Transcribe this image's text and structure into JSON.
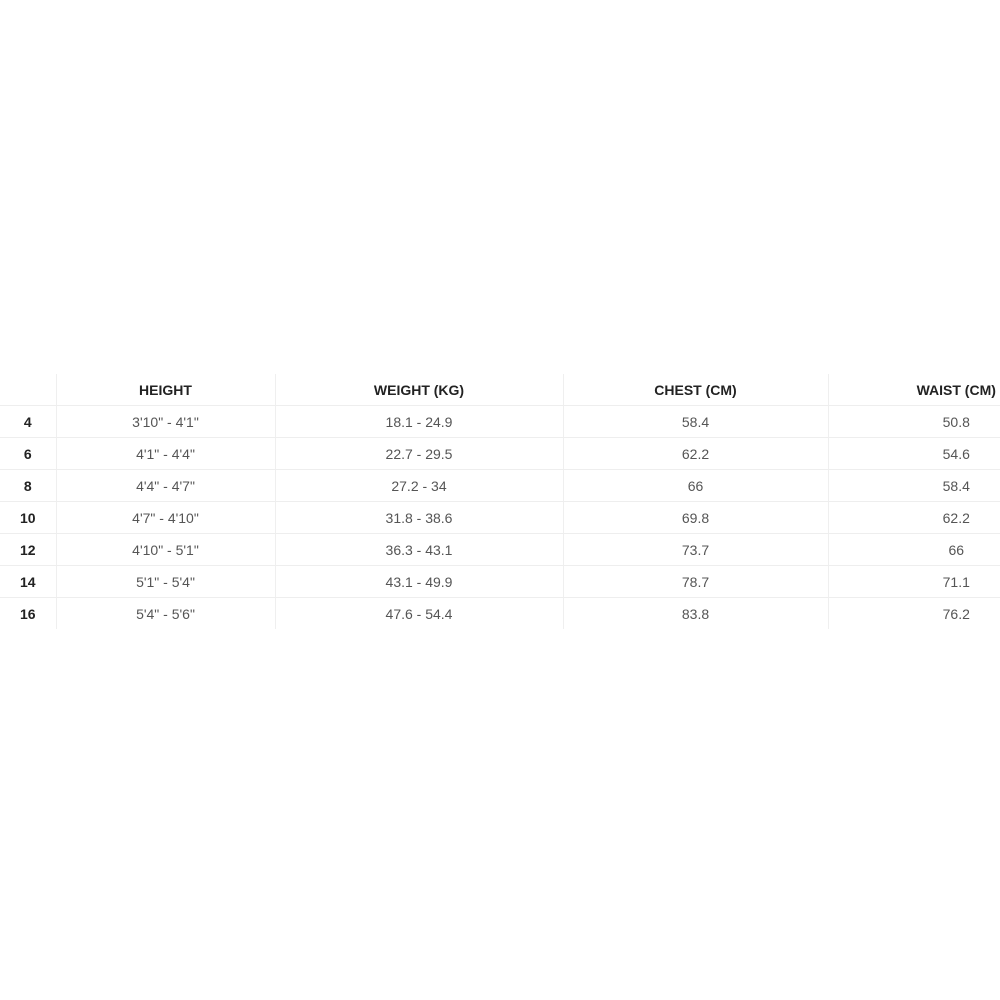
{
  "table": {
    "headers": [
      "",
      "HEIGHT",
      "WEIGHT (KG)",
      "CHEST (CM)",
      "WAIST (CM)"
    ],
    "rows": [
      [
        "4",
        "3'10\" - 4'1\"",
        "18.1 - 24.9",
        "58.4",
        "50.8"
      ],
      [
        "6",
        "4'1\" - 4'4\"",
        "22.7 - 29.5",
        "62.2",
        "54.6"
      ],
      [
        "8",
        "4'4\" - 4'7\"",
        "27.2 - 34",
        "66",
        "58.4"
      ],
      [
        "10",
        "4'7\" - 4'10\"",
        "31.8 - 38.6",
        "69.8",
        "62.2"
      ],
      [
        "12",
        "4'10\" - 5'1\"",
        "36.3 - 43.1",
        "73.7",
        "66"
      ],
      [
        "14",
        "5'1\" - 5'4\"",
        "43.1 - 49.9",
        "78.7",
        "71.1"
      ],
      [
        "16",
        "5'4\" - 5'6\"",
        "47.6 - 54.4",
        "83.8",
        "76.2"
      ]
    ]
  }
}
